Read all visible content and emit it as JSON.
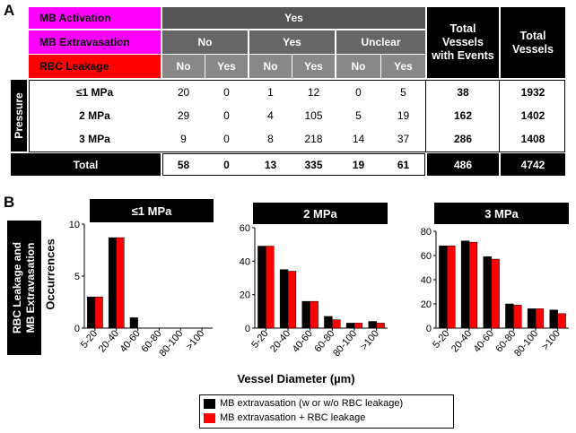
{
  "panel_a": {
    "letter": "A",
    "header_labels": {
      "mb_activation": "MB Activation",
      "mb_extravasation": "MB Extravasation",
      "rbc_leakage": "RBC Leakage"
    },
    "yes_label": "Yes",
    "extravasation_groups": [
      "No",
      "Yes",
      "Unclear"
    ],
    "leakage_cols": [
      "No",
      "Yes",
      "No",
      "Yes",
      "No",
      "Yes"
    ],
    "total_vessels_with_events_label": "Total Vessels with Events",
    "total_vessels_label": "Total Vessels",
    "pressure_label": "Pressure",
    "rows": [
      {
        "label": "≤1 MPa",
        "values": [
          "20",
          "0",
          "1",
          "12",
          "0",
          "5"
        ],
        "events": "38",
        "total": "1932"
      },
      {
        "label": "2 MPa",
        "values": [
          "29",
          "0",
          "4",
          "105",
          "5",
          "19"
        ],
        "events": "162",
        "total": "1402"
      },
      {
        "label": "3 MPa",
        "values": [
          "9",
          "0",
          "8",
          "218",
          "14",
          "37"
        ],
        "events": "286",
        "total": "1408"
      }
    ],
    "total_row": {
      "label": "Total",
      "values": [
        "58",
        "0",
        "13",
        "335",
        "19",
        "61"
      ],
      "events": "486",
      "total": "4742"
    }
  },
  "panel_b": {
    "letter": "B",
    "side_label_line1": "RBC Leakage and",
    "side_label_line2": "MB Extravasation",
    "ylabel": "Occurrences",
    "xlabel": "Vessel Diameter (µm)",
    "legend": [
      {
        "label": "MB extravasation (w or w/o RBC leakage)",
        "color": "#000000"
      },
      {
        "label": "MB extravasation + RBC leakage",
        "color": "#ff0000"
      }
    ]
  },
  "chart_data": [
    {
      "type": "bar",
      "title": "≤1 MPa",
      "categories": [
        "5-20",
        "20-40",
        "40-60",
        "60-80",
        "80-100",
        ">100"
      ],
      "series": [
        {
          "values": [
            3,
            8.7,
            1,
            0,
            0,
            0
          ],
          "color": "#000000"
        },
        {
          "values": [
            3,
            8.7,
            0,
            0,
            0,
            0
          ],
          "color": "#ff0000"
        }
      ],
      "ylim": [
        0,
        10
      ],
      "yticks": [
        "0",
        "5",
        "10"
      ],
      "xlabel": "Vessel Diameter (µm)",
      "ylabel": "Occurrences"
    },
    {
      "type": "bar",
      "title": "2 MPa",
      "categories": [
        "5-20",
        "20-40",
        "40-60",
        "60-80",
        "80-100",
        ">100"
      ],
      "series": [
        {
          "values": [
            49,
            35,
            16,
            7,
            3,
            4
          ],
          "color": "#000000"
        },
        {
          "values": [
            49,
            34,
            16,
            5,
            3,
            3
          ],
          "color": "#ff0000"
        }
      ],
      "ylim": [
        0,
        60
      ],
      "yticks": [
        "0",
        "20",
        "40",
        "60"
      ],
      "xlabel": "Vessel Diameter (µm)",
      "ylabel": ""
    },
    {
      "type": "bar",
      "title": "3 MPa",
      "categories": [
        "5-20",
        "20-40",
        "40-60",
        "60-80",
        "80-100",
        ">100"
      ],
      "series": [
        {
          "values": [
            68,
            72,
            59,
            20,
            16,
            15
          ],
          "color": "#000000"
        },
        {
          "values": [
            68,
            71,
            57,
            19,
            16,
            12
          ],
          "color": "#ff0000"
        }
      ],
      "ylim": [
        0,
        80
      ],
      "yticks": [
        "0",
        "20",
        "40",
        "60",
        "80"
      ],
      "xlabel": "Vessel Diameter (µm)",
      "ylabel": ""
    }
  ]
}
